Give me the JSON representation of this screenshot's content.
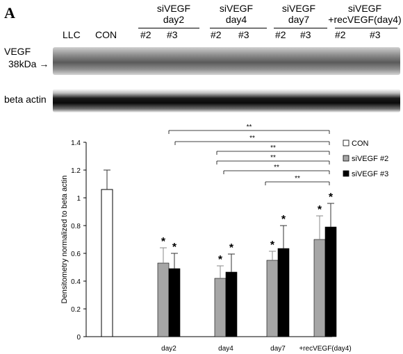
{
  "panel_letter": "A",
  "blot": {
    "lanes": [
      "LLC",
      "CON"
    ],
    "groups": [
      {
        "line1": "siVEGF",
        "line2": "day2",
        "sub": [
          "#2",
          "#3"
        ]
      },
      {
        "line1": "siVEGF",
        "line2": "day4",
        "sub": [
          "#2",
          "#3"
        ]
      },
      {
        "line1": "siVEGF",
        "line2": "day7",
        "sub": [
          "#2",
          "#3"
        ]
      },
      {
        "line1": "siVEGF",
        "line2": "+recVEGF(day4)",
        "sub": [
          "#2",
          "#3"
        ]
      }
    ],
    "row1_label_a": "VEGF",
    "row1_label_b": "38kDa →",
    "row2_label": "beta actin"
  },
  "chart_data": {
    "type": "bar",
    "ylabel": "Densitometry normalized to beta actin",
    "ylim": [
      0,
      1.4
    ],
    "yticks": [
      "0",
      "0.2",
      "0.4",
      "0.6",
      "0.8",
      "1",
      "1.2",
      "1.4"
    ],
    "categories": [
      "",
      "day2",
      "day4",
      "day7",
      "+recVEGF(day4)"
    ],
    "series": [
      {
        "name": "CON",
        "color": "#ffffff",
        "values": [
          1.06,
          null,
          null,
          null,
          null
        ],
        "errors": [
          0.14,
          null,
          null,
          null,
          null
        ]
      },
      {
        "name": "siVEGF #2",
        "color": "#a6a6a6",
        "values": [
          null,
          0.53,
          0.42,
          0.55,
          0.7
        ],
        "errors": [
          null,
          0.11,
          0.09,
          0.065,
          0.17
        ]
      },
      {
        "name": "siVEGF #3",
        "color": "#000000",
        "values": [
          null,
          0.49,
          0.465,
          0.635,
          0.79
        ],
        "errors": [
          null,
          0.11,
          0.13,
          0.165,
          0.17
        ]
      }
    ],
    "significance_marker": "*",
    "comparison_label": "**",
    "legend_position": "right"
  }
}
